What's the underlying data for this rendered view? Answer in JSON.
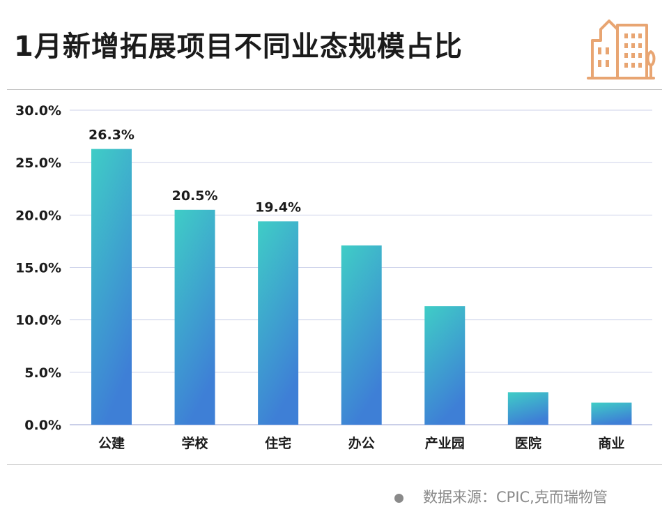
{
  "title": "1月新增拓展项目不同业态规模占比",
  "source": "数据来源：CPIC,克而瑞物管",
  "colors": {
    "bar_top": "#3fcdc6",
    "bar_bottom": "#3e7fd6",
    "grid": "#cdd2ea",
    "axis": "#b8bfe0",
    "icon": "#e8a572",
    "text": "#1b1b1b"
  },
  "chart_data": {
    "type": "bar",
    "title": "1月新增拓展项目不同业态规模占比",
    "xlabel": "",
    "ylabel": "",
    "categories": [
      "公建",
      "学校",
      "住宅",
      "办公",
      "产业园",
      "医院",
      "商业"
    ],
    "values": [
      26.3,
      20.5,
      19.4,
      17.1,
      11.3,
      3.1,
      2.1
    ],
    "data_labels": [
      "26.3%",
      "20.5%",
      "19.4%",
      "",
      "",
      "",
      ""
    ],
    "ylim": [
      0,
      30
    ],
    "yticks": [
      0,
      5,
      10,
      15,
      20,
      25,
      30
    ],
    "ytick_labels": [
      "0.0%",
      "5.0%",
      "10.0%",
      "15.0%",
      "20.0%",
      "25.0%",
      "30.0%"
    ],
    "grid": true,
    "legend": "none"
  }
}
